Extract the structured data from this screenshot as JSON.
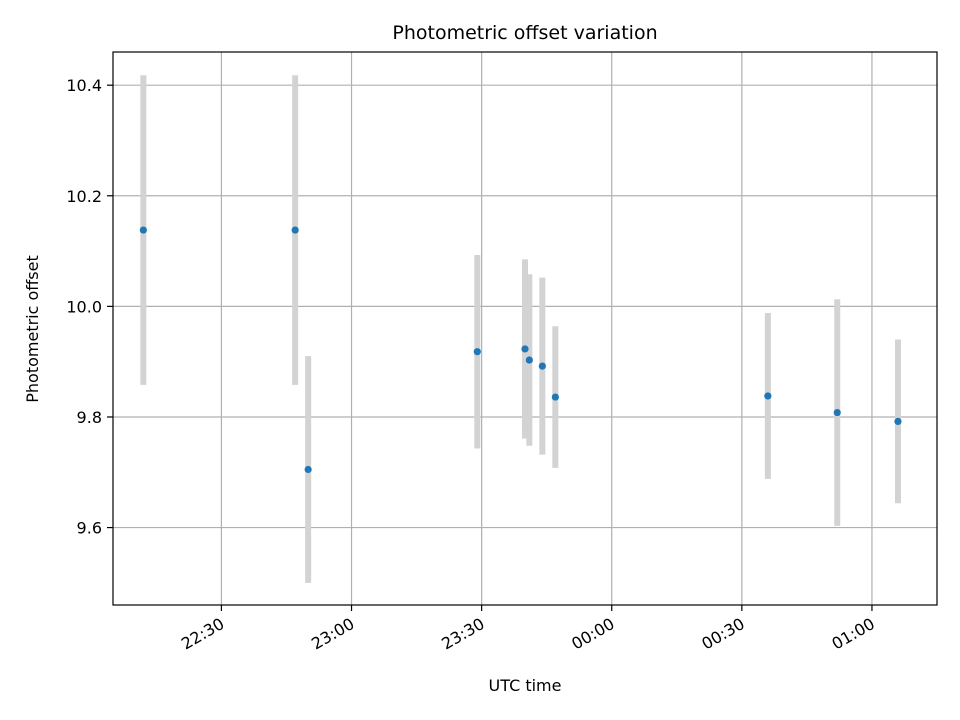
{
  "chart_data": {
    "type": "scatter",
    "title": "Photometric offset variation",
    "xlabel": "UTC time",
    "ylabel": "Photometric offset",
    "x_axis_kind": "time",
    "xlim": [
      "22:05",
      "01:15"
    ],
    "ylim": [
      9.46,
      10.46
    ],
    "x_ticks": [
      "22:30",
      "23:00",
      "23:30",
      "00:00",
      "00:30",
      "01:00"
    ],
    "y_ticks": [
      "9.6",
      "9.8",
      "10.0",
      "10.2",
      "10.4"
    ],
    "grid": true,
    "colors": {
      "point": "#1f77b4",
      "errorbar": "#d3d3d3",
      "grid": "#b0b0b0"
    },
    "points": [
      {
        "x": "22:12",
        "y": 10.138,
        "err": 0.28
      },
      {
        "x": "22:47",
        "y": 10.138,
        "err": 0.28
      },
      {
        "x": "22:50",
        "y": 9.705,
        "err": 0.205
      },
      {
        "x": "23:29",
        "y": 9.918,
        "err": 0.175
      },
      {
        "x": "23:40",
        "y": 9.923,
        "err": 0.162
      },
      {
        "x": "23:41",
        "y": 9.903,
        "err": 0.155
      },
      {
        "x": "23:44",
        "y": 9.892,
        "err": 0.16
      },
      {
        "x": "23:47",
        "y": 9.836,
        "err": 0.128
      },
      {
        "x": "00:36",
        "y": 9.838,
        "err": 0.15
      },
      {
        "x": "00:52",
        "y": 9.808,
        "err": 0.205
      },
      {
        "x": "01:06",
        "y": 9.792,
        "err": 0.148
      }
    ]
  }
}
